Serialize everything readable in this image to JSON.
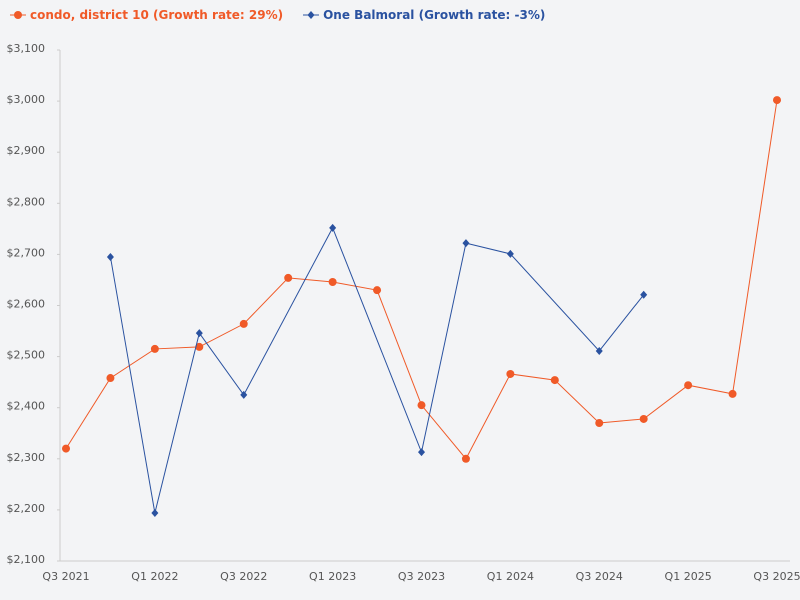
{
  "chart_data": {
    "type": "line",
    "categories": [
      "Q3 2021",
      null,
      "Q1 2022",
      null,
      "Q3 2022",
      null,
      "Q1 2023",
      null,
      "Q3 2023",
      null,
      "Q1 2024",
      null,
      "Q3 2024",
      null,
      "Q1 2025",
      null,
      "Q3 2025"
    ],
    "series": [
      {
        "name": "condo, district 10 (Growth rate: 29%)",
        "color": "#f05a28",
        "marker": "circle",
        "values": [
          2320,
          2458,
          2515,
          2519,
          2564,
          2654,
          2646,
          2630,
          2405,
          2300,
          2466,
          2454,
          2370,
          2378,
          2444,
          2427,
          3002
        ]
      },
      {
        "name": "One Balmoral (Growth rate: -3%)",
        "color": "#2a52a0",
        "marker": "diamond",
        "values": [
          null,
          2695,
          2194,
          2546,
          2425,
          null,
          2752,
          null,
          2313,
          2722,
          2701,
          null,
          2511,
          2621,
          null,
          null,
          null
        ]
      }
    ],
    "connect_gaps": true,
    "ylim": [
      2100,
      3100
    ],
    "yticks": [
      {
        "value": 2100,
        "label": "$2,100"
      },
      {
        "value": 2200,
        "label": "$2,200"
      },
      {
        "value": 2300,
        "label": "$2,300"
      },
      {
        "value": 2400,
        "label": "$2,400"
      },
      {
        "value": 2500,
        "label": "$2,500"
      },
      {
        "value": 2600,
        "label": "$2,600"
      },
      {
        "value": 2700,
        "label": "$2,700"
      },
      {
        "value": 2800,
        "label": "$2,800"
      },
      {
        "value": 2900,
        "label": "$2,900"
      },
      {
        "value": 3000,
        "label": "$3,000"
      },
      {
        "value": 3100,
        "label": "$3,100"
      }
    ],
    "grid": false,
    "legend": "top-left"
  }
}
